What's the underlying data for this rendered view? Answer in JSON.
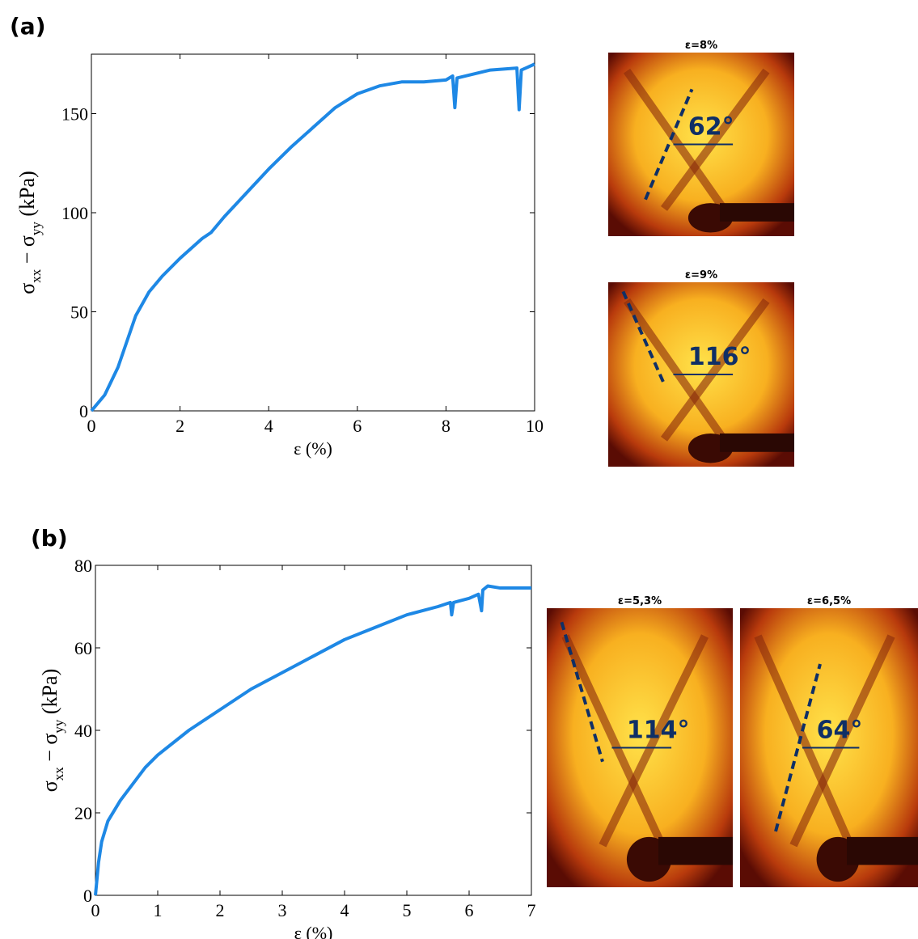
{
  "chart_data": [
    {
      "type": "line",
      "panel": "(a)",
      "xlabel": "ε (%)",
      "ylabel": [
        "σ",
        "xx",
        " − σ",
        "yy",
        " (kPa)"
      ],
      "x": [
        0,
        0.3,
        0.6,
        0.8,
        1,
        1.3,
        1.6,
        2,
        2.5,
        2.7,
        3,
        3.5,
        4,
        4.5,
        5,
        5.5,
        6,
        6.5,
        7,
        7.5,
        8,
        8.15,
        8.2,
        8.25,
        9,
        9.6,
        9.65,
        9.7,
        9.8,
        10
      ],
      "series": [
        {
          "color": "#1e88e5",
          "values": [
            0,
            8,
            22,
            35,
            48,
            60,
            68,
            77,
            87,
            90,
            98,
            110,
            122,
            133,
            143,
            153,
            160,
            164,
            166,
            166,
            167,
            169,
            153,
            168,
            172,
            173,
            152,
            172,
            173,
            175
          ]
        }
      ],
      "xlim": [
        0,
        10
      ],
      "ylim": [
        0,
        180
      ],
      "xticks": [
        0,
        2,
        4,
        6,
        8,
        10
      ],
      "yticks": [
        0,
        50,
        100,
        150
      ],
      "images": [
        {
          "label": "ε=8%",
          "angle": "62°"
        },
        {
          "label": "ε=9%",
          "angle": "116°"
        }
      ]
    },
    {
      "type": "line",
      "panel": "(b)",
      "xlabel": "ε (%)",
      "ylabel": [
        "σ",
        "xx",
        " − σ",
        "yy",
        " (kPa)"
      ],
      "x": [
        0,
        0.05,
        0.1,
        0.2,
        0.4,
        0.6,
        0.8,
        1,
        1.5,
        2,
        2.5,
        3,
        3.5,
        4,
        4.5,
        5,
        5.5,
        5.7,
        5.72,
        5.75,
        6,
        6.15,
        6.2,
        6.22,
        6.3,
        6.5,
        7
      ],
      "series": [
        {
          "color": "#1e88e5",
          "values": [
            0,
            8,
            13,
            18,
            23,
            27,
            31,
            34,
            40,
            45,
            50,
            54,
            58,
            62,
            65,
            68,
            70,
            71,
            68,
            71,
            72,
            73,
            69,
            74,
            75,
            74.5,
            74.5
          ]
        }
      ],
      "xlim": [
        0,
        7
      ],
      "ylim": [
        0,
        80
      ],
      "xticks": [
        0,
        1,
        2,
        3,
        4,
        5,
        6,
        7
      ],
      "yticks": [
        0,
        20,
        40,
        60,
        80
      ],
      "images": [
        {
          "label": "ε=5,3%",
          "angle": "114°"
        },
        {
          "label": "ε=6,5%",
          "angle": "64°"
        }
      ]
    }
  ]
}
